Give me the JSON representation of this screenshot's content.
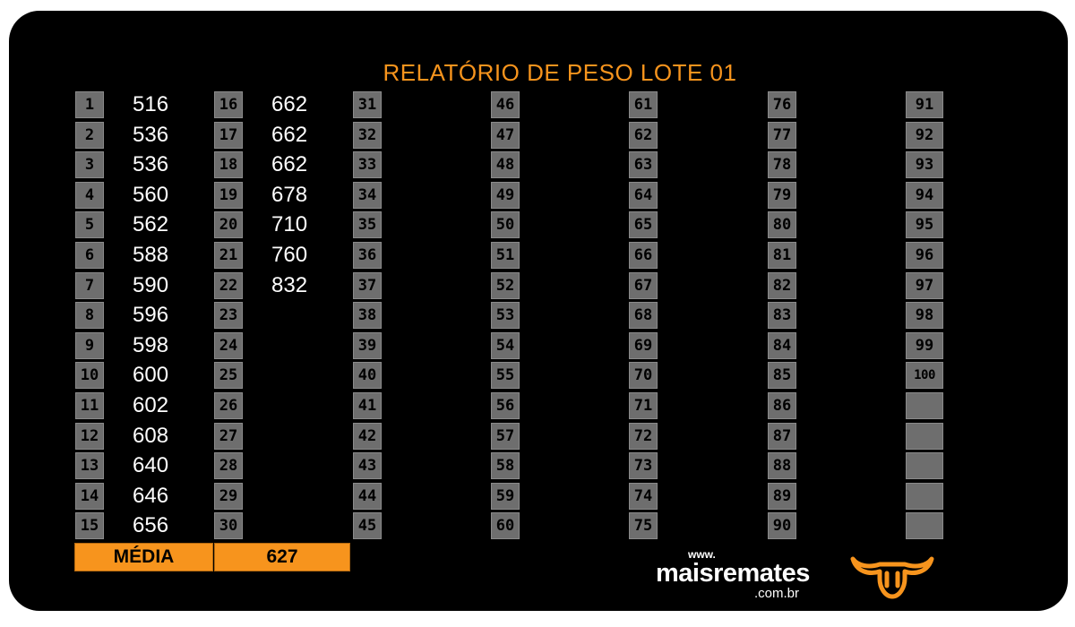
{
  "title": "RELATÓRIO DE PESO LOTE 01",
  "columns": [
    {
      "rows": [
        {
          "n": "1",
          "v": "516"
        },
        {
          "n": "2",
          "v": "536"
        },
        {
          "n": "3",
          "v": "536"
        },
        {
          "n": "4",
          "v": "560"
        },
        {
          "n": "5",
          "v": "562"
        },
        {
          "n": "6",
          "v": "588"
        },
        {
          "n": "7",
          "v": "590"
        },
        {
          "n": "8",
          "v": "596"
        },
        {
          "n": "9",
          "v": "598"
        },
        {
          "n": "10",
          "v": "600"
        },
        {
          "n": "11",
          "v": "602"
        },
        {
          "n": "12",
          "v": "608"
        },
        {
          "n": "13",
          "v": "640"
        },
        {
          "n": "14",
          "v": "646"
        },
        {
          "n": "15",
          "v": "656"
        }
      ]
    },
    {
      "rows": [
        {
          "n": "16",
          "v": "662"
        },
        {
          "n": "17",
          "v": "662"
        },
        {
          "n": "18",
          "v": "662"
        },
        {
          "n": "19",
          "v": "678"
        },
        {
          "n": "20",
          "v": "710"
        },
        {
          "n": "21",
          "v": "760"
        },
        {
          "n": "22",
          "v": "832"
        },
        {
          "n": "23",
          "v": ""
        },
        {
          "n": "24",
          "v": ""
        },
        {
          "n": "25",
          "v": ""
        },
        {
          "n": "26",
          "v": ""
        },
        {
          "n": "27",
          "v": ""
        },
        {
          "n": "28",
          "v": ""
        },
        {
          "n": "29",
          "v": ""
        },
        {
          "n": "30",
          "v": ""
        }
      ]
    },
    {
      "rows": [
        {
          "n": "31",
          "v": ""
        },
        {
          "n": "32",
          "v": ""
        },
        {
          "n": "33",
          "v": ""
        },
        {
          "n": "34",
          "v": ""
        },
        {
          "n": "35",
          "v": ""
        },
        {
          "n": "36",
          "v": ""
        },
        {
          "n": "37",
          "v": ""
        },
        {
          "n": "38",
          "v": ""
        },
        {
          "n": "39",
          "v": ""
        },
        {
          "n": "40",
          "v": ""
        },
        {
          "n": "41",
          "v": ""
        },
        {
          "n": "42",
          "v": ""
        },
        {
          "n": "43",
          "v": ""
        },
        {
          "n": "44",
          "v": ""
        },
        {
          "n": "45",
          "v": ""
        }
      ]
    },
    {
      "rows": [
        {
          "n": "46",
          "v": ""
        },
        {
          "n": "47",
          "v": ""
        },
        {
          "n": "48",
          "v": ""
        },
        {
          "n": "49",
          "v": ""
        },
        {
          "n": "50",
          "v": ""
        },
        {
          "n": "51",
          "v": ""
        },
        {
          "n": "52",
          "v": ""
        },
        {
          "n": "53",
          "v": ""
        },
        {
          "n": "54",
          "v": ""
        },
        {
          "n": "55",
          "v": ""
        },
        {
          "n": "56",
          "v": ""
        },
        {
          "n": "57",
          "v": ""
        },
        {
          "n": "58",
          "v": ""
        },
        {
          "n": "59",
          "v": ""
        },
        {
          "n": "60",
          "v": ""
        }
      ]
    },
    {
      "rows": [
        {
          "n": "61",
          "v": ""
        },
        {
          "n": "62",
          "v": ""
        },
        {
          "n": "63",
          "v": ""
        },
        {
          "n": "64",
          "v": ""
        },
        {
          "n": "65",
          "v": ""
        },
        {
          "n": "66",
          "v": ""
        },
        {
          "n": "67",
          "v": ""
        },
        {
          "n": "68",
          "v": ""
        },
        {
          "n": "69",
          "v": ""
        },
        {
          "n": "70",
          "v": ""
        },
        {
          "n": "71",
          "v": ""
        },
        {
          "n": "72",
          "v": ""
        },
        {
          "n": "73",
          "v": ""
        },
        {
          "n": "74",
          "v": ""
        },
        {
          "n": "75",
          "v": ""
        }
      ]
    },
    {
      "rows": [
        {
          "n": "76",
          "v": ""
        },
        {
          "n": "77",
          "v": ""
        },
        {
          "n": "78",
          "v": ""
        },
        {
          "n": "79",
          "v": ""
        },
        {
          "n": "80",
          "v": ""
        },
        {
          "n": "81",
          "v": ""
        },
        {
          "n": "82",
          "v": ""
        },
        {
          "n": "83",
          "v": ""
        },
        {
          "n": "84",
          "v": ""
        },
        {
          "n": "85",
          "v": ""
        },
        {
          "n": "86",
          "v": ""
        },
        {
          "n": "87",
          "v": ""
        },
        {
          "n": "88",
          "v": ""
        },
        {
          "n": "89",
          "v": ""
        },
        {
          "n": "90",
          "v": ""
        }
      ]
    },
    {
      "rows": [
        {
          "n": "91",
          "v": ""
        },
        {
          "n": "92",
          "v": ""
        },
        {
          "n": "93",
          "v": ""
        },
        {
          "n": "94",
          "v": ""
        },
        {
          "n": "95",
          "v": ""
        },
        {
          "n": "96",
          "v": ""
        },
        {
          "n": "97",
          "v": ""
        },
        {
          "n": "98",
          "v": ""
        },
        {
          "n": "99",
          "v": ""
        },
        {
          "n": "100",
          "v": ""
        },
        {
          "n": "",
          "v": ""
        },
        {
          "n": "",
          "v": ""
        },
        {
          "n": "",
          "v": ""
        },
        {
          "n": "",
          "v": ""
        },
        {
          "n": "",
          "v": ""
        }
      ]
    }
  ],
  "footer": {
    "media_label": "MÉDIA",
    "media_value": "627"
  },
  "logo": {
    "www": "www.",
    "name": "maisremates",
    "domain": ".com.br",
    "icon": "bull-head-icon"
  },
  "colors": {
    "background": "#000000",
    "accent": "#f7941d",
    "cell": "#6e6e6e",
    "text": "#ffffff"
  }
}
